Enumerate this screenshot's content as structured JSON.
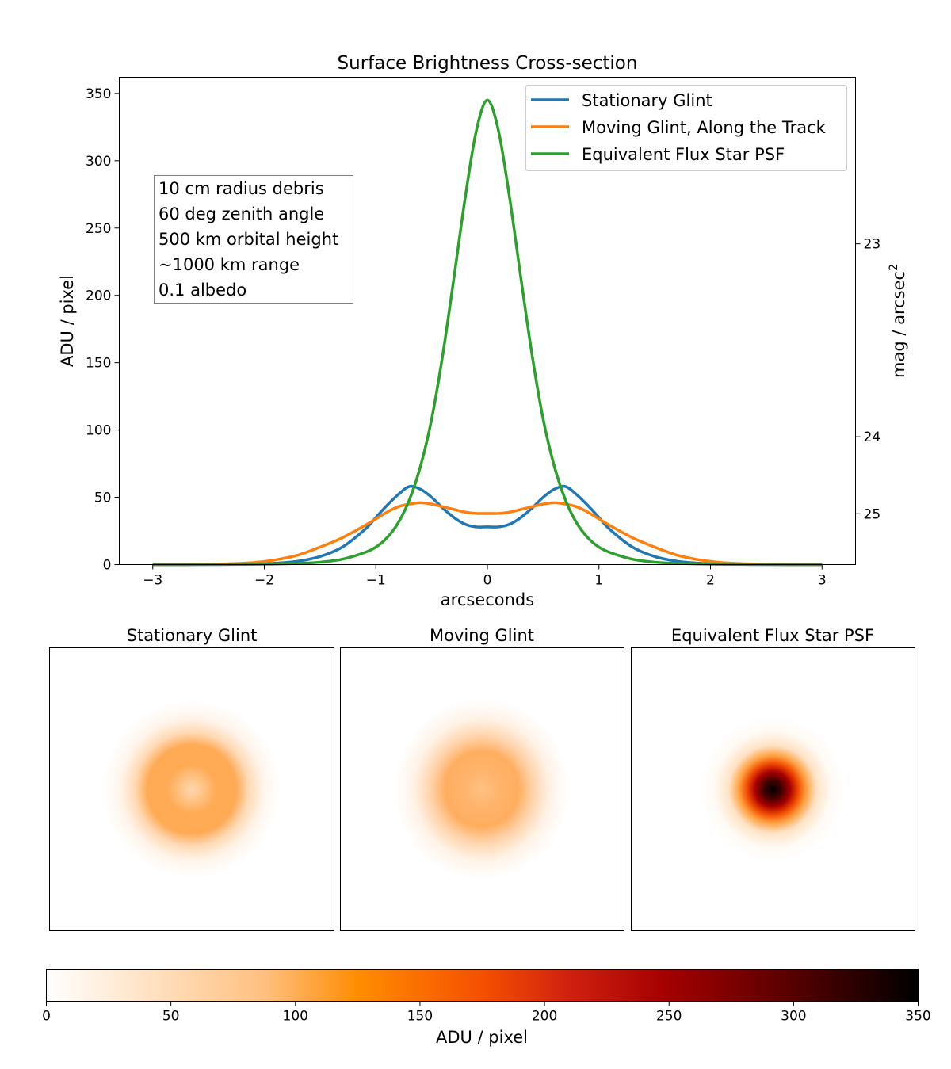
{
  "colors": {
    "stationary": "#1f77b4",
    "moving": "#ff7f0e",
    "star": "#2ca02c",
    "colormap": "gist_heat_r"
  },
  "chart_data": [
    {
      "type": "line",
      "title": "Surface Brightness Cross-section",
      "xlabel": "arcseconds",
      "ylabel": "ADU / pixel",
      "ylabel_right": "mag / arcsec",
      "ylabel_right_superscript": "2",
      "xlim": [
        -3.3,
        3.3
      ],
      "ylim": [
        0,
        362
      ],
      "xticks": [
        -3,
        -2,
        -1,
        0,
        1,
        2,
        3
      ],
      "xtick_labels": [
        "−3",
        "−2",
        "−1",
        "0",
        "1",
        "2",
        "3"
      ],
      "yticks": [
        0,
        50,
        100,
        150,
        200,
        250,
        300,
        350
      ],
      "ytick_labels": [
        "0",
        "50",
        "100",
        "150",
        "200",
        "250",
        "300",
        "350"
      ],
      "right_ticks": [
        {
          "label": "23",
          "adu": 238.3
        },
        {
          "label": "24",
          "adu": 95.0
        },
        {
          "label": "25",
          "adu": 37.8
        }
      ],
      "grid": false,
      "legend_position": "top-right",
      "annotation_lines": [
        "10 cm radius debris",
        "60 deg zenith angle",
        "500 km orbital height",
        "~1000 km range",
        "0.1 albedo"
      ],
      "series": [
        {
          "name": "Stationary Glint",
          "color": "#1f77b4",
          "x": [
            -3.0,
            -2.7,
            -2.4,
            -2.1,
            -1.9,
            -1.7,
            -1.5,
            -1.3,
            -1.1,
            -1.0,
            -0.9,
            -0.8,
            -0.7,
            -0.6,
            -0.5,
            -0.4,
            -0.3,
            -0.2,
            -0.1,
            0.0,
            0.1,
            0.2,
            0.3,
            0.4,
            0.5,
            0.6,
            0.7,
            0.8,
            0.9,
            1.0,
            1.1,
            1.3,
            1.5,
            1.7,
            1.9,
            2.1,
            2.4,
            2.7,
            3.0
          ],
          "values": [
            0,
            0,
            0.1,
            0.4,
            1,
            2.5,
            6,
            13,
            26,
            35,
            44,
            52,
            58,
            56,
            50,
            42,
            35,
            30,
            28,
            28,
            28,
            30,
            35,
            42,
            50,
            56,
            58,
            52,
            44,
            35,
            26,
            13,
            6,
            2.5,
            1,
            0.4,
            0.1,
            0,
            0
          ]
        },
        {
          "name": "Moving Glint, Along the Track",
          "color": "#ff7f0e",
          "x": [
            -3.0,
            -2.7,
            -2.4,
            -2.1,
            -1.9,
            -1.7,
            -1.5,
            -1.3,
            -1.1,
            -1.0,
            -0.9,
            -0.8,
            -0.7,
            -0.6,
            -0.5,
            -0.4,
            -0.3,
            -0.2,
            -0.1,
            0.0,
            0.1,
            0.2,
            0.3,
            0.4,
            0.5,
            0.6,
            0.7,
            0.8,
            0.9,
            1.0,
            1.1,
            1.3,
            1.5,
            1.7,
            1.9,
            2.1,
            2.4,
            2.7,
            3.0
          ],
          "values": [
            0,
            0.1,
            0.4,
            1.5,
            3.5,
            7,
            13,
            20,
            29,
            34,
            39,
            43,
            45,
            46,
            45,
            43,
            41,
            39,
            38,
            38,
            38,
            39,
            41,
            43,
            45,
            46,
            45,
            43,
            39,
            34,
            29,
            20,
            13,
            7,
            3.5,
            1.5,
            0.4,
            0.1,
            0
          ]
        },
        {
          "name": "Equivalent Flux Star PSF",
          "color": "#2ca02c",
          "x": [
            -3.0,
            -2.5,
            -2.0,
            -1.7,
            -1.5,
            -1.3,
            -1.1,
            -1.0,
            -0.9,
            -0.8,
            -0.7,
            -0.6,
            -0.5,
            -0.4,
            -0.3,
            -0.2,
            -0.1,
            0.0,
            0.1,
            0.2,
            0.3,
            0.4,
            0.5,
            0.6,
            0.7,
            0.8,
            0.9,
            1.0,
            1.1,
            1.3,
            1.5,
            1.7,
            2.0,
            2.5,
            3.0
          ],
          "values": [
            0,
            0.05,
            0.3,
            0.9,
            1.8,
            4,
            9,
            13,
            20,
            31,
            48,
            73,
            108,
            156,
            213,
            272,
            322,
            345,
            322,
            272,
            213,
            156,
            108,
            73,
            48,
            31,
            20,
            13,
            9,
            4,
            1.8,
            0.9,
            0.3,
            0.05,
            0
          ]
        }
      ]
    },
    {
      "type": "heatmap",
      "panels": [
        {
          "title": "Stationary Glint",
          "profile": "ring",
          "ring_radius_arcsec": 0.68,
          "peak_adu": 58,
          "center_adu": 28
        },
        {
          "title": "Moving Glint",
          "profile": "ring",
          "ring_radius_arcsec": 0.6,
          "peak_adu": 46,
          "center_adu": 38
        },
        {
          "title": "Equivalent Flux Star PSF",
          "profile": "peak",
          "peak_adu": 345
        }
      ],
      "colorbar": {
        "label": "ADU / pixel",
        "range": [
          0,
          350
        ],
        "ticks": [
          0,
          50,
          100,
          150,
          200,
          250,
          300,
          350
        ],
        "tick_labels": [
          "0",
          "50",
          "100",
          "150",
          "200",
          "250",
          "300",
          "350"
        ]
      }
    }
  ]
}
